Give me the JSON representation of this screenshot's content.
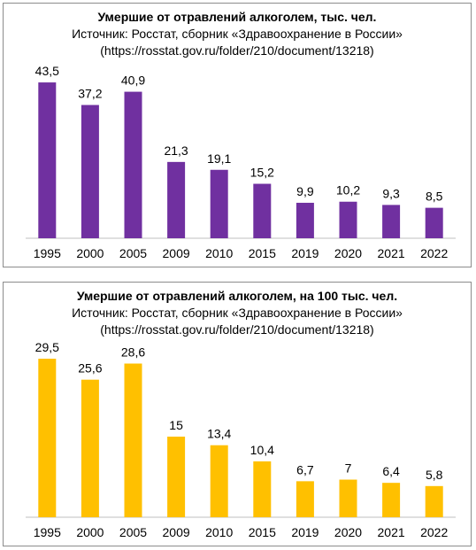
{
  "chart_data": [
    {
      "type": "bar",
      "title": "Умершие от отравлений алкоголем, тыс. чел.",
      "subtitle": "Источник: Росстат, сборник «Здравоохранение  в России»",
      "source_url": "(https://rosstat.gov.ru/folder/210/document/13218)",
      "categories": [
        "1995",
        "2000",
        "2005",
        "2009",
        "2010",
        "2015",
        "2019",
        "2020",
        "2021",
        "2022"
      ],
      "values": [
        43.5,
        37.2,
        40.9,
        21.3,
        19.1,
        15.2,
        9.9,
        10.2,
        9.3,
        8.5
      ],
      "value_labels": [
        "43,5",
        "37,2",
        "40,9",
        "21,3",
        "19,1",
        "15,2",
        "9,9",
        "10,2",
        "9,3",
        "8,5"
      ],
      "color": "#7030a0",
      "ylim": [
        0,
        45
      ],
      "grid": false,
      "legend": "none"
    },
    {
      "type": "bar",
      "title": "Умершие от отравлений алкоголем, на 100 тыс.  чел.",
      "subtitle": "Источник: Росстат, сборник «Здравоохранение  в России»",
      "source_url": "(https://rosstat.gov.ru/folder/210/document/13218)",
      "categories": [
        "1995",
        "2000",
        "2005",
        "2009",
        "2010",
        "2015",
        "2019",
        "2020",
        "2021",
        "2022"
      ],
      "values": [
        29.5,
        25.6,
        28.6,
        15,
        13.4,
        10.4,
        6.7,
        7,
        6.4,
        5.8
      ],
      "value_labels": [
        "29,5",
        "25,6",
        "28,6",
        "15",
        "13,4",
        "10,4",
        "6,7",
        "7",
        "6,4",
        "5,8"
      ],
      "color": "#ffc000",
      "ylim": [
        0,
        30
      ],
      "grid": false,
      "legend": "none"
    }
  ]
}
